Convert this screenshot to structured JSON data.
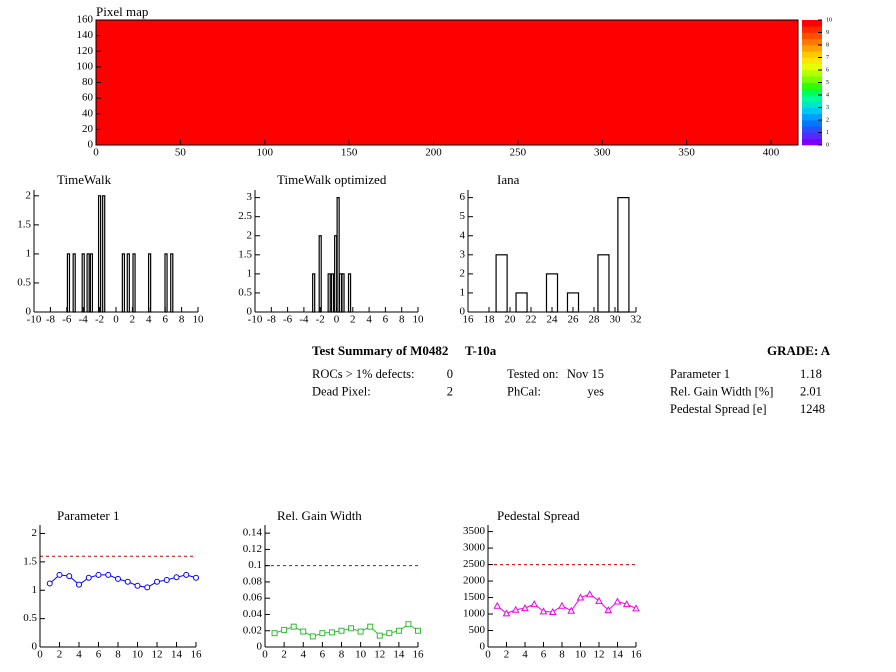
{
  "chart_data": [
    {
      "type": "heatmap",
      "title": "Pixel map",
      "value": 10,
      "xlim": [
        0,
        416
      ],
      "ylim": [
        0,
        160
      ],
      "xticks": [
        0,
        50,
        100,
        150,
        200,
        250,
        300,
        350,
        400
      ],
      "yticks": [
        0,
        20,
        40,
        60,
        80,
        100,
        120,
        140,
        160
      ],
      "zlim": [
        0,
        10
      ],
      "zticks": [
        0,
        1,
        2,
        3,
        4,
        5,
        6,
        7,
        8,
        9,
        10
      ],
      "palette": [
        "#7f00ff",
        "#5a28ff",
        "#2850ff",
        "#0078ff",
        "#00a0ff",
        "#00c8f0",
        "#00e6c8",
        "#00ff96",
        "#00ff50",
        "#32ff00",
        "#78ff00",
        "#b4ff00",
        "#e6ff00",
        "#ffe600",
        "#ffc800",
        "#ffa000",
        "#ff7800",
        "#ff5000",
        "#ff2800",
        "#ff0000"
      ]
    },
    {
      "type": "histogram",
      "title": "TimeWalk",
      "color": "#000000",
      "bin_width": 0.25,
      "x": [
        -5.8,
        -5.1,
        -4.0,
        -3.4,
        -3.0,
        -2.0,
        -1.5,
        0.9,
        1.5,
        2.2,
        4.1,
        6.1,
        6.8
      ],
      "values": [
        1,
        1,
        1,
        1,
        1,
        2,
        2,
        1,
        1,
        1,
        1,
        1,
        1
      ],
      "xlim": [
        -10,
        10
      ],
      "ylim": [
        0,
        2.1
      ],
      "xticks": [
        -10,
        -8,
        -6,
        -4,
        -2,
        0,
        2,
        4,
        6,
        8,
        10
      ],
      "yticks": [
        0,
        0.5,
        1,
        1.5,
        2
      ]
    },
    {
      "type": "histogram",
      "title": "TimeWalk optimized",
      "color": "#000000",
      "bin_width": 0.25,
      "x": [
        -2.8,
        -2.0,
        -0.9,
        -0.5,
        -0.1,
        0.2,
        0.5,
        0.8,
        1.6
      ],
      "values": [
        1,
        2,
        1,
        1,
        2,
        3,
        1,
        1,
        1
      ],
      "xlim": [
        -10,
        10
      ],
      "ylim": [
        0,
        3.2
      ],
      "xticks": [
        -10,
        -8,
        -6,
        -4,
        -2,
        0,
        2,
        4,
        6,
        8,
        10
      ],
      "yticks": [
        0,
        0.5,
        1,
        1.5,
        2,
        2.5,
        3
      ]
    },
    {
      "type": "histogram",
      "title": "Iana",
      "color": "#000000",
      "bin_width": 1.05,
      "x": [
        19.2,
        21.1,
        24.0,
        26.0,
        28.9,
        30.8
      ],
      "values": [
        3,
        1,
        2,
        1,
        3,
        6
      ],
      "xlim": [
        16,
        32
      ],
      "ylim": [
        0,
        6.4
      ],
      "xticks": [
        16,
        18,
        20,
        22,
        24,
        26,
        28,
        30,
        32
      ],
      "yticks": [
        0,
        1,
        2,
        3,
        4,
        5,
        6
      ]
    },
    {
      "type": "line",
      "title": "Parameter 1",
      "color": "#0000ff",
      "marker": "circle",
      "threshold": 1.6,
      "threshold_color": "#cc0000",
      "x": [
        1,
        2,
        3,
        4,
        5,
        6,
        7,
        8,
        9,
        10,
        11,
        12,
        13,
        14,
        15,
        16
      ],
      "values": [
        1.12,
        1.27,
        1.25,
        1.1,
        1.22,
        1.27,
        1.27,
        1.2,
        1.15,
        1.08,
        1.05,
        1.15,
        1.18,
        1.23,
        1.27,
        1.22
      ],
      "xlim": [
        0,
        16
      ],
      "ylim": [
        0,
        2.15
      ],
      "xticks": [
        0,
        2,
        4,
        6,
        8,
        10,
        12,
        14,
        16
      ],
      "yticks": [
        0,
        0.5,
        1,
        1.5,
        2
      ]
    },
    {
      "type": "line",
      "title": "Rel. Gain Width",
      "color": "#33bb33",
      "marker": "square",
      "threshold": 0.1,
      "threshold_color": "#cc0000",
      "x": [
        1,
        2,
        3,
        4,
        5,
        6,
        7,
        8,
        9,
        10,
        11,
        12,
        13,
        14,
        15,
        16
      ],
      "values": [
        0.017,
        0.021,
        0.025,
        0.019,
        0.013,
        0.017,
        0.018,
        0.02,
        0.023,
        0.019,
        0.025,
        0.014,
        0.017,
        0.02,
        0.028,
        0.02
      ],
      "xlim": [
        0,
        16
      ],
      "ylim": [
        0,
        0.15
      ],
      "xticks": [
        0,
        2,
        4,
        6,
        8,
        10,
        12,
        14,
        16
      ],
      "yticks": [
        0,
        0.02,
        0.04,
        0.06,
        0.08,
        0.1,
        0.12,
        0.14
      ]
    },
    {
      "type": "line",
      "title": "Pedestal Spread",
      "color": "#ee00ee",
      "marker": "triangle",
      "threshold": 2500,
      "threshold_color": "#cc0000",
      "x": [
        1,
        2,
        3,
        4,
        5,
        6,
        7,
        8,
        9,
        10,
        11,
        12,
        13,
        14,
        15,
        16
      ],
      "values": [
        1250,
        1020,
        1130,
        1180,
        1300,
        1080,
        1060,
        1250,
        1100,
        1500,
        1600,
        1400,
        1120,
        1380,
        1300,
        1170
      ],
      "xlim": [
        0,
        16
      ],
      "ylim": [
        0,
        3700
      ],
      "xticks": [
        0,
        2,
        4,
        6,
        8,
        10,
        12,
        14,
        16
      ],
      "yticks": [
        0,
        500,
        1000,
        1500,
        2000,
        2500,
        3000,
        3500
      ]
    }
  ],
  "summary": {
    "title": "Test Summary of M0482",
    "test": "T-10a",
    "grade": "GRADE:  A",
    "col1": [
      {
        "label": "ROCs > 1% defects:",
        "value": 0
      },
      {
        "label": "Dead Pixel:",
        "value": 2
      }
    ],
    "col2": [
      {
        "label": "Tested on:",
        "value": "Nov 15"
      },
      {
        "label": "PhCal:",
        "value": "yes"
      }
    ],
    "col3": [
      {
        "label": "Parameter 1",
        "value": 1.18
      },
      {
        "label": "Rel. Gain Width [%]",
        "value": 2.01
      },
      {
        "label": "Pedestal Spread [e]",
        "value": 1248
      }
    ]
  }
}
